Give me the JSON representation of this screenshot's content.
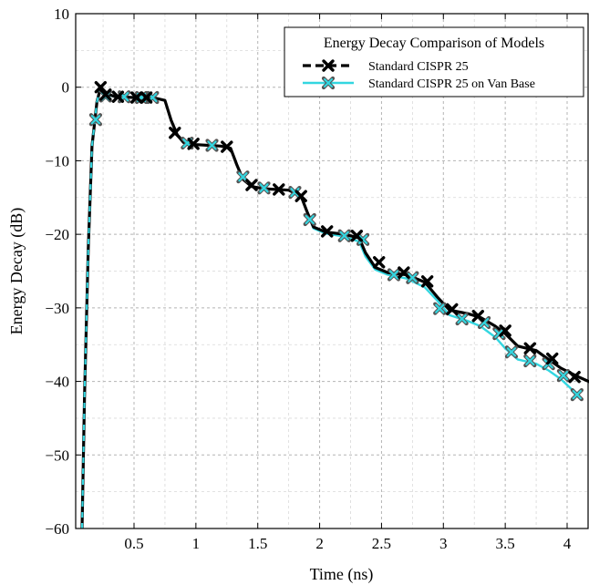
{
  "chart_data": {
    "type": "line",
    "title": "",
    "xlabel": "Time (ns)",
    "ylabel": "Energy Decay (dB)",
    "xlim": [
      0.05,
      4.2
    ],
    "ylim": [
      -60,
      10
    ],
    "xticks": [
      0.5,
      1,
      1.5,
      2,
      2.5,
      3,
      3.5,
      4
    ],
    "xtick_labels": [
      "0.5",
      "1",
      "1.5",
      "2",
      "2.5",
      "3",
      "3.5",
      "4"
    ],
    "yticks": [
      10,
      0,
      -10,
      -20,
      -30,
      -40,
      -50,
      -60
    ],
    "ytick_labels": [
      "10",
      "0",
      "−10",
      "−20",
      "−30",
      "−40",
      "−50",
      "−60"
    ],
    "grid": true,
    "grid_minor": true,
    "legend": {
      "title": "Energy Decay Comparison of Models",
      "placement": "top-right"
    },
    "series": [
      {
        "name": "Standard CISPR 25",
        "color": "#000000",
        "line_style": "dashed",
        "marker": "x",
        "line": [
          [
            0.08,
            -60
          ],
          [
            0.1,
            -42
          ],
          [
            0.13,
            -22
          ],
          [
            0.16,
            -8
          ],
          [
            0.2,
            -2
          ],
          [
            0.23,
            0
          ],
          [
            0.27,
            -0.8
          ],
          [
            0.35,
            -1.3
          ],
          [
            0.5,
            -1.4
          ],
          [
            0.65,
            -1.4
          ],
          [
            0.75,
            -1.8
          ],
          [
            0.8,
            -4.5
          ],
          [
            0.85,
            -6.5
          ],
          [
            0.9,
            -7.5
          ],
          [
            1.0,
            -7.8
          ],
          [
            1.1,
            -7.9
          ],
          [
            1.2,
            -8.0
          ],
          [
            1.28,
            -8.3
          ],
          [
            1.33,
            -10.5
          ],
          [
            1.38,
            -12.5
          ],
          [
            1.45,
            -13.5
          ],
          [
            1.55,
            -13.8
          ],
          [
            1.75,
            -14
          ],
          [
            1.85,
            -14.8
          ],
          [
            1.9,
            -17
          ],
          [
            1.95,
            -19
          ],
          [
            2.05,
            -19.7
          ],
          [
            2.2,
            -20
          ],
          [
            2.32,
            -20.5
          ],
          [
            2.37,
            -22.5
          ],
          [
            2.45,
            -24.5
          ],
          [
            2.55,
            -25.2
          ],
          [
            2.7,
            -25.5
          ],
          [
            2.85,
            -26.5
          ],
          [
            2.95,
            -28.5
          ],
          [
            3.05,
            -30.3
          ],
          [
            3.2,
            -30.8
          ],
          [
            3.3,
            -31.3
          ],
          [
            3.42,
            -32.5
          ],
          [
            3.5,
            -33.5
          ],
          [
            3.6,
            -35.2
          ],
          [
            3.75,
            -35.8
          ],
          [
            3.85,
            -37
          ],
          [
            3.95,
            -38.2
          ],
          [
            4.08,
            -39.3
          ],
          [
            4.2,
            -40.2
          ]
        ],
        "markers": [
          [
            0.23,
            0
          ],
          [
            0.27,
            -1
          ],
          [
            0.37,
            -1.3
          ],
          [
            0.52,
            -1.4
          ],
          [
            0.6,
            -1.4
          ],
          [
            0.83,
            -6.2
          ],
          [
            0.98,
            -7.7
          ],
          [
            1.25,
            -8.1
          ],
          [
            1.45,
            -13.3
          ],
          [
            1.67,
            -13.9
          ],
          [
            1.85,
            -14.8
          ],
          [
            2.06,
            -19.6
          ],
          [
            2.3,
            -20.2
          ],
          [
            2.48,
            -23.8
          ],
          [
            2.68,
            -25.2
          ],
          [
            2.87,
            -26.4
          ],
          [
            3.07,
            -30.2
          ],
          [
            3.28,
            -31.1
          ],
          [
            3.5,
            -33.1
          ],
          [
            3.7,
            -35.5
          ],
          [
            3.88,
            -36.9
          ],
          [
            4.06,
            -39.4
          ]
        ]
      },
      {
        "name": "Standard CISPR 25 on Van Base",
        "color": "#33d6e0",
        "line_style": "solid",
        "marker": "x",
        "line": [
          [
            0.08,
            -60
          ],
          [
            0.1,
            -42
          ],
          [
            0.13,
            -22
          ],
          [
            0.16,
            -8
          ],
          [
            0.2,
            -2
          ],
          [
            0.23,
            -0.3
          ],
          [
            0.27,
            -1
          ],
          [
            0.35,
            -1.3
          ],
          [
            0.5,
            -1.4
          ],
          [
            0.65,
            -1.4
          ],
          [
            0.75,
            -1.8
          ],
          [
            0.8,
            -4.5
          ],
          [
            0.85,
            -6.5
          ],
          [
            0.9,
            -7.5
          ],
          [
            1.0,
            -7.8
          ],
          [
            1.1,
            -7.9
          ],
          [
            1.2,
            -8.0
          ],
          [
            1.28,
            -8.3
          ],
          [
            1.33,
            -10.5
          ],
          [
            1.38,
            -12.5
          ],
          [
            1.45,
            -13.5
          ],
          [
            1.55,
            -13.8
          ],
          [
            1.75,
            -14
          ],
          [
            1.85,
            -14.8
          ],
          [
            1.9,
            -17
          ],
          [
            1.95,
            -19.2
          ],
          [
            2.05,
            -19.9
          ],
          [
            2.2,
            -20.3
          ],
          [
            2.32,
            -21
          ],
          [
            2.37,
            -23
          ],
          [
            2.45,
            -24.8
          ],
          [
            2.55,
            -25.5
          ],
          [
            2.7,
            -26
          ],
          [
            2.85,
            -27.2
          ],
          [
            2.95,
            -29
          ],
          [
            3.05,
            -31
          ],
          [
            3.2,
            -31.8
          ],
          [
            3.3,
            -32.5
          ],
          [
            3.42,
            -34
          ],
          [
            3.5,
            -35.5
          ],
          [
            3.6,
            -37
          ],
          [
            3.75,
            -37.6
          ],
          [
            3.85,
            -38.5
          ],
          [
            3.95,
            -39.7
          ],
          [
            4.02,
            -40.8
          ],
          [
            4.08,
            -41.8
          ]
        ],
        "markers": [
          [
            0.19,
            -4.4
          ],
          [
            0.27,
            -1.2
          ],
          [
            0.42,
            -1.3
          ],
          [
            0.56,
            -1.4
          ],
          [
            0.65,
            -1.4
          ],
          [
            0.93,
            -7.6
          ],
          [
            1.13,
            -7.9
          ],
          [
            1.38,
            -12.2
          ],
          [
            1.55,
            -13.7
          ],
          [
            1.8,
            -14.3
          ],
          [
            1.92,
            -18
          ],
          [
            2.2,
            -20.2
          ],
          [
            2.35,
            -20.7
          ],
          [
            2.6,
            -25.5
          ],
          [
            2.75,
            -25.9
          ],
          [
            2.97,
            -30.1
          ],
          [
            3.15,
            -31.5
          ],
          [
            3.33,
            -32
          ],
          [
            3.45,
            -33.5
          ],
          [
            3.55,
            -36
          ],
          [
            3.7,
            -37.2
          ],
          [
            3.85,
            -37.6
          ],
          [
            3.97,
            -39.2
          ],
          [
            4.08,
            -41.8
          ]
        ]
      }
    ]
  }
}
